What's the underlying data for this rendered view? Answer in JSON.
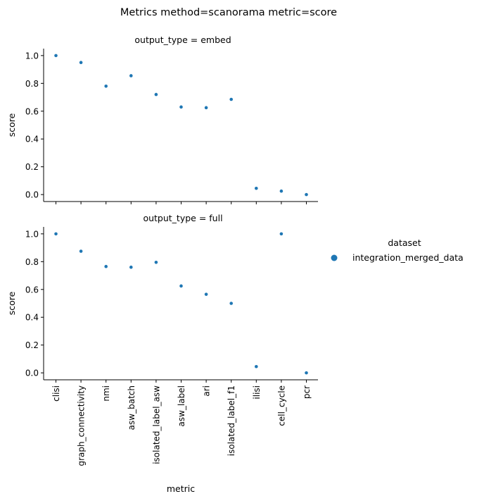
{
  "chart_data": {
    "type": "scatter",
    "title": "Metrics method=scanorama metric=score",
    "xlabel": "metric",
    "ylabel": "score",
    "ylim": [
      -0.05,
      1.05
    ],
    "yticks": [
      0.0,
      0.2,
      0.4,
      0.6,
      0.8,
      1.0
    ],
    "ytick_labels": [
      "0.0",
      "0.2",
      "0.4",
      "0.6",
      "0.8",
      "1.0"
    ],
    "categories": [
      "clisi",
      "graph_connectivity",
      "nmi",
      "asw_batch",
      "isolated_label_asw",
      "asw_label",
      "ari",
      "isolated_label_f1",
      "ilisi",
      "cell_cycle",
      "pcr"
    ],
    "grid": false,
    "legend": {
      "title": "dataset",
      "placement": "right",
      "entries": [
        {
          "name": "integration_merged_data",
          "color": "#1f77b4"
        }
      ]
    },
    "panels": [
      {
        "title": "output_type = embed",
        "series": [
          {
            "name": "integration_merged_data",
            "color": "#1f77b4",
            "values": [
              1.0,
              0.95,
              0.78,
              0.855,
              0.72,
              0.63,
              0.625,
              0.685,
              0.045,
              0.025,
              0.0
            ]
          }
        ]
      },
      {
        "title": "output_type = full",
        "series": [
          {
            "name": "integration_merged_data",
            "color": "#1f77b4",
            "values": [
              1.0,
              0.875,
              0.765,
              0.76,
              0.795,
              0.625,
              0.565,
              0.5,
              0.045,
              1.0,
              0.0
            ]
          }
        ]
      }
    ]
  }
}
